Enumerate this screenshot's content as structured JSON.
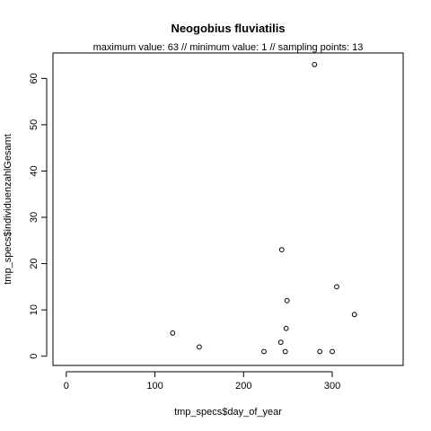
{
  "chart_data": {
    "type": "scatter",
    "title": "Neogobius fluviatilis",
    "subtitle": "maximum value: 63  //  minimum value: 1  // sampling points: 13",
    "xlabel": "tmp_specs$day_of_year",
    "ylabel": "tmp_specs$individuenzahlGesamt",
    "xlim": [
      -15,
      380
    ],
    "ylim": [
      -2,
      65.5
    ],
    "xticks": [
      0,
      100,
      200,
      300
    ],
    "yticks": [
      0,
      10,
      20,
      30,
      40,
      50,
      60
    ],
    "points": [
      {
        "x": 120,
        "y": 5
      },
      {
        "x": 150,
        "y": 2
      },
      {
        "x": 223,
        "y": 1
      },
      {
        "x": 242,
        "y": 3
      },
      {
        "x": 243,
        "y": 23
      },
      {
        "x": 247,
        "y": 1
      },
      {
        "x": 248,
        "y": 6
      },
      {
        "x": 249,
        "y": 12
      },
      {
        "x": 280,
        "y": 63
      },
      {
        "x": 286,
        "y": 1
      },
      {
        "x": 300,
        "y": 1
      },
      {
        "x": 305,
        "y": 15
      },
      {
        "x": 325,
        "y": 9
      }
    ]
  }
}
